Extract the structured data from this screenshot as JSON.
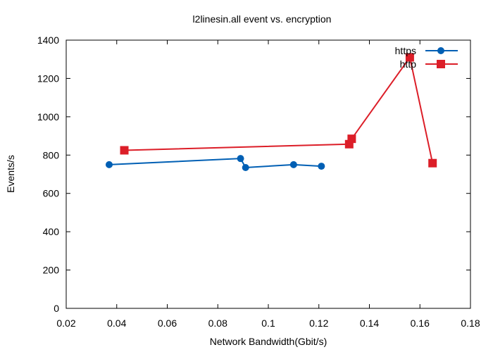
{
  "chart_data": {
    "type": "line",
    "title": "l2linesin.all event vs. encryption",
    "xlabel": "Network Bandwidth(Gbit/s)",
    "ylabel": "Events/s",
    "xlim": [
      0.02,
      0.18
    ],
    "ylim": [
      0,
      1400
    ],
    "xticks": [
      0.02,
      0.04,
      0.06,
      0.08,
      0.1,
      0.12,
      0.14,
      0.16,
      0.18
    ],
    "xtick_labels": [
      "0.02",
      "0.04",
      "0.06",
      "0.08",
      "0.1",
      "0.12",
      "0.14",
      "0.16",
      "0.18"
    ],
    "yticks": [
      0,
      200,
      400,
      600,
      800,
      1000,
      1200,
      1400
    ],
    "ytick_labels": [
      "0",
      "200",
      "400",
      "600",
      "800",
      "1000",
      "1200",
      "1400"
    ],
    "grid": false,
    "legend_position": "top-right",
    "series": [
      {
        "name": "https",
        "color": "#005fb4",
        "marker": "circle",
        "x": [
          0.037,
          0.089,
          0.091,
          0.11,
          0.121
        ],
        "y": [
          750,
          782,
          735,
          750,
          742
        ]
      },
      {
        "name": "http",
        "color": "#dc1e28",
        "marker": "square",
        "x": [
          0.043,
          0.132,
          0.133,
          0.156,
          0.165
        ],
        "y": [
          825,
          857,
          885,
          1310,
          758
        ]
      }
    ]
  }
}
